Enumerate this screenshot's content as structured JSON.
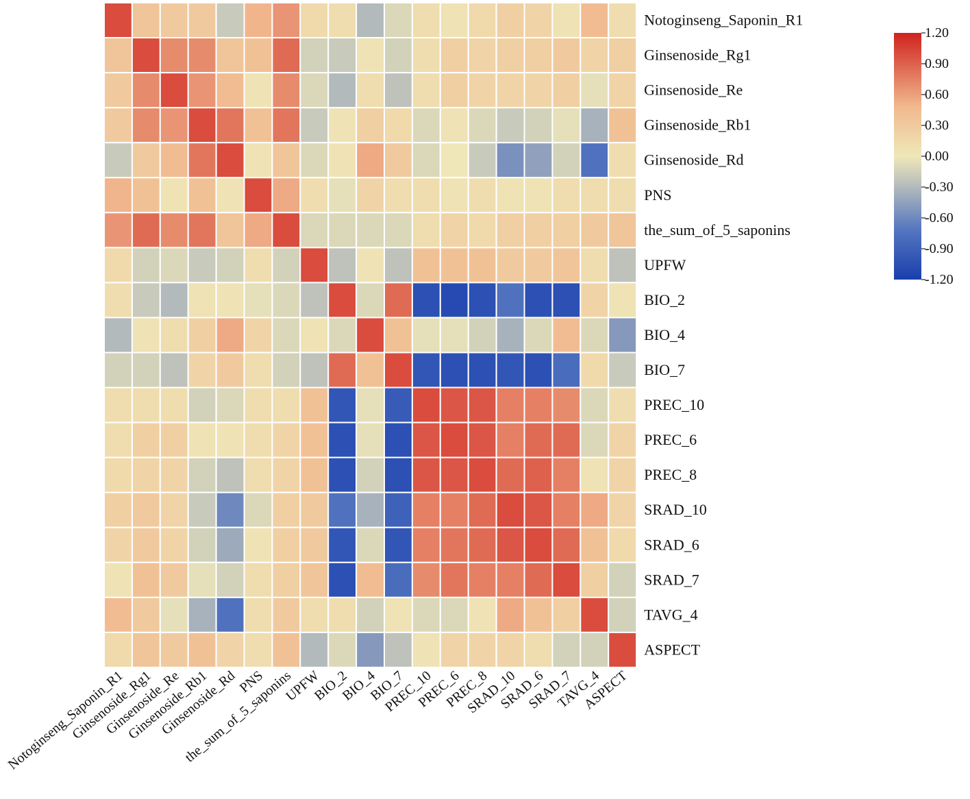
{
  "chart_data": {
    "type": "heatmap",
    "title": "",
    "row_labels": [
      "Notoginseng_Saponin_R1",
      "Ginsenoside_Rg1",
      "Ginsenoside_Re",
      "Ginsenoside_Rb1",
      "Ginsenoside_Rd",
      "PNS",
      "the_sum_of_5_saponins",
      "UPFW",
      "BIO_2",
      "BIO_4",
      "BIO_7",
      "PREC_10",
      "PREC_6",
      "PREC_8",
      "SRAD_10",
      "SRAD_6",
      "SRAD_7",
      "TAVG_4",
      "ASPECT"
    ],
    "col_labels": [
      "Notoginseng_Saponin_R1",
      "Ginsenoside_Rg1",
      "Ginsenoside_Re",
      "Ginsenoside_Rb1",
      "Ginsenoside_Rd",
      "PNS",
      "the_sum_of_5_saponins",
      "UPFW",
      "BIO_2",
      "BIO_4",
      "BIO_7",
      "PREC_10",
      "PREC_6",
      "PREC_8",
      "SRAD_10",
      "SRAD_6",
      "SRAD_7",
      "TAVG_4",
      "ASPECT"
    ],
    "values": [
      [
        1.0,
        0.35,
        0.3,
        0.3,
        -0.2,
        0.5,
        0.65,
        0.15,
        0.1,
        -0.3,
        -0.1,
        0.1,
        0.05,
        0.15,
        0.25,
        0.2,
        0.05,
        0.45,
        0.1
      ],
      [
        0.35,
        1.0,
        0.7,
        0.7,
        0.35,
        0.4,
        0.85,
        -0.15,
        -0.2,
        0.05,
        -0.15,
        0.1,
        0.25,
        0.2,
        0.25,
        0.25,
        0.3,
        0.2,
        0.25
      ],
      [
        0.3,
        0.7,
        1.0,
        0.65,
        0.45,
        0.05,
        0.7,
        -0.1,
        -0.3,
        0.1,
        -0.25,
        0.1,
        0.25,
        0.2,
        0.2,
        0.2,
        0.25,
        -0.05,
        0.2
      ],
      [
        0.3,
        0.7,
        0.65,
        1.0,
        0.8,
        0.4,
        0.8,
        -0.2,
        0.05,
        0.25,
        0.15,
        -0.1,
        0.05,
        -0.1,
        -0.2,
        -0.15,
        -0.05,
        -0.35,
        0.4
      ],
      [
        -0.2,
        0.3,
        0.45,
        0.8,
        1.0,
        0.05,
        0.35,
        -0.1,
        0.05,
        0.55,
        0.3,
        -0.1,
        0.0,
        -0.2,
        -0.55,
        -0.45,
        -0.15,
        -0.75,
        0.1
      ],
      [
        0.5,
        0.4,
        0.05,
        0.4,
        0.05,
        1.0,
        0.55,
        0.1,
        -0.05,
        0.2,
        0.1,
        0.1,
        0.05,
        0.1,
        0.05,
        0.05,
        0.1,
        0.1,
        0.1
      ],
      [
        0.65,
        0.85,
        0.7,
        0.8,
        0.35,
        0.55,
        1.0,
        -0.1,
        -0.1,
        -0.1,
        -0.1,
        0.1,
        0.2,
        0.15,
        0.25,
        0.25,
        0.25,
        0.3,
        0.35
      ],
      [
        0.15,
        -0.15,
        -0.1,
        -0.2,
        -0.15,
        0.1,
        -0.15,
        1.0,
        -0.25,
        0.05,
        -0.25,
        0.4,
        0.4,
        0.4,
        0.3,
        0.3,
        0.35,
        0.1,
        -0.25
      ],
      [
        0.1,
        -0.2,
        -0.3,
        0.05,
        0.05,
        -0.05,
        -0.1,
        -0.25,
        1.0,
        -0.1,
        0.85,
        -1.05,
        -1.1,
        -1.05,
        -0.75,
        -1.05,
        -1.05,
        0.2,
        0.05
      ],
      [
        -0.3,
        0.05,
        0.1,
        0.25,
        0.55,
        0.2,
        -0.1,
        0.05,
        -0.1,
        1.0,
        0.4,
        -0.05,
        -0.05,
        -0.15,
        -0.35,
        -0.1,
        0.45,
        -0.1,
        -0.5
      ],
      [
        -0.15,
        -0.15,
        -0.25,
        0.2,
        0.3,
        0.1,
        -0.15,
        -0.25,
        0.85,
        0.4,
        1.0,
        -1.0,
        -1.05,
        -1.05,
        -1.0,
        -1.05,
        -0.8,
        0.15,
        -0.2
      ],
      [
        0.1,
        0.1,
        0.1,
        -0.15,
        -0.1,
        0.1,
        0.1,
        0.4,
        -1.0,
        -0.05,
        -0.95,
        1.0,
        0.95,
        0.95,
        0.75,
        0.75,
        0.7,
        -0.1,
        0.1
      ],
      [
        0.1,
        0.25,
        0.25,
        0.05,
        0.05,
        0.1,
        0.2,
        0.4,
        -1.05,
        -0.05,
        -1.05,
        0.95,
        1.0,
        0.95,
        0.75,
        0.85,
        0.85,
        -0.1,
        0.2
      ],
      [
        0.15,
        0.2,
        0.2,
        -0.15,
        -0.25,
        0.1,
        0.2,
        0.4,
        -1.05,
        -0.15,
        -1.05,
        0.95,
        0.95,
        1.0,
        0.85,
        0.9,
        0.75,
        0.05,
        0.2
      ],
      [
        0.25,
        0.3,
        0.2,
        -0.2,
        -0.6,
        -0.1,
        0.25,
        0.3,
        -0.75,
        -0.35,
        -0.9,
        0.75,
        0.75,
        0.85,
        1.0,
        0.95,
        0.75,
        0.55,
        0.2
      ],
      [
        0.2,
        0.3,
        0.2,
        -0.15,
        -0.4,
        0.05,
        0.25,
        0.3,
        -1.0,
        -0.1,
        -1.0,
        0.75,
        0.8,
        0.85,
        0.95,
        1.0,
        0.85,
        0.4,
        0.15
      ],
      [
        0.05,
        0.4,
        0.3,
        -0.05,
        -0.15,
        0.1,
        0.25,
        0.35,
        -1.05,
        0.45,
        -0.8,
        0.7,
        0.8,
        0.75,
        0.75,
        0.85,
        1.0,
        0.25,
        -0.15
      ],
      [
        0.45,
        0.3,
        -0.05,
        -0.35,
        -0.75,
        0.1,
        0.3,
        0.1,
        0.1,
        -0.15,
        0.05,
        -0.1,
        -0.1,
        0.05,
        0.55,
        0.4,
        0.25,
        1.0,
        -0.15
      ],
      [
        0.15,
        0.35,
        0.3,
        0.4,
        0.2,
        0.1,
        0.4,
        -0.3,
        -0.1,
        -0.5,
        -0.25,
        0.05,
        0.2,
        0.2,
        0.2,
        0.1,
        -0.15,
        -0.15,
        1.0
      ]
    ],
    "colorbar": {
      "min": -1.2,
      "max": 1.2,
      "ticks": [
        "1.20",
        "0.90",
        "0.60",
        "0.30",
        "0.00",
        "-0.30",
        "-0.60",
        "-0.90",
        "-1.20"
      ],
      "colors": [
        "#1a3fae",
        "#5475bf",
        "#c0c4bb",
        "#efe7b8",
        "#f1b98f",
        "#d0221f"
      ]
    },
    "legend_position": "top-right"
  }
}
